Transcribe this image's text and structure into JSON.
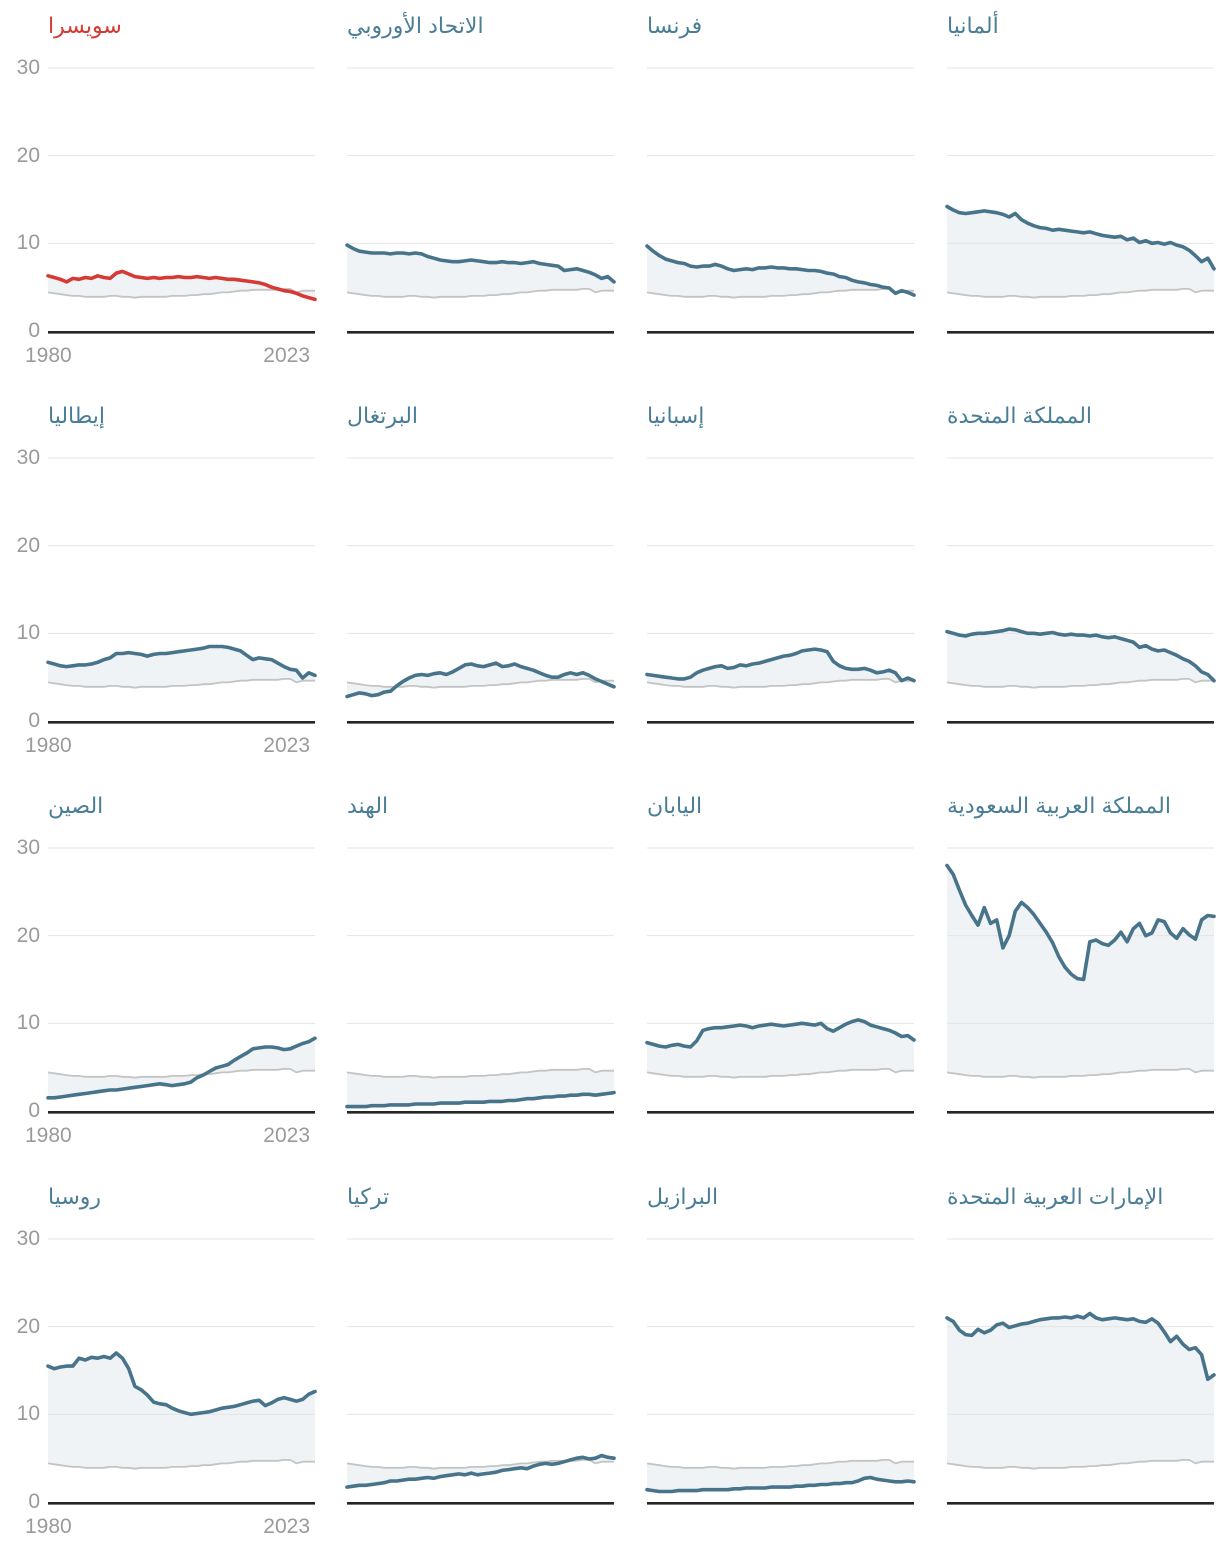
{
  "chart_data": {
    "type": "line",
    "title": "",
    "x_range": [
      1980,
      2023
    ],
    "ylim": [
      0,
      30
    ],
    "grid": true,
    "legend_position": "none",
    "y_tick_labels": [
      "30",
      "20",
      "10",
      "0"
    ],
    "y_tick_values": [
      30,
      20,
      10,
      0
    ],
    "x_tick_labels": [
      "1980",
      "2023"
    ],
    "colors": {
      "line": "#47748b",
      "highlight_line": "#d63a35",
      "title": "#4a7d96",
      "highlight_title": "#d63a35",
      "reference_line": "#c4c4c4",
      "area_fill": "#eff3f5",
      "gridline": "#e4e4e4",
      "baseline": "#262626",
      "tick_label": "#9a9a9a"
    },
    "reference_series_values": [
      4.4,
      4.3,
      4.2,
      4.1,
      4.0,
      4.0,
      3.9,
      3.9,
      3.9,
      3.9,
      4.0,
      4.0,
      3.9,
      3.9,
      3.8,
      3.9,
      3.9,
      3.9,
      3.9,
      3.9,
      4.0,
      4.0,
      4.0,
      4.1,
      4.1,
      4.2,
      4.2,
      4.3,
      4.4,
      4.4,
      4.5,
      4.6,
      4.6,
      4.7,
      4.7,
      4.7,
      4.7,
      4.7,
      4.8,
      4.8,
      4.4,
      4.6,
      4.6,
      4.6
    ],
    "panels": [
      {
        "id": "switzerland",
        "title": "سويسرا",
        "highlight": true,
        "values": [
          6.3,
          6.1,
          5.9,
          5.6,
          6.0,
          5.9,
          6.1,
          6.0,
          6.3,
          6.1,
          6.0,
          6.6,
          6.8,
          6.5,
          6.2,
          6.1,
          6.0,
          6.1,
          6.0,
          6.1,
          6.1,
          6.2,
          6.1,
          6.1,
          6.2,
          6.1,
          6.0,
          6.1,
          6.0,
          5.9,
          5.9,
          5.8,
          5.7,
          5.6,
          5.5,
          5.3,
          5.0,
          4.8,
          4.6,
          4.5,
          4.3,
          4.0,
          3.8,
          3.6
        ]
      },
      {
        "id": "european-union",
        "title": "الاتحاد الأوروبي",
        "highlight": false,
        "values": [
          9.8,
          9.4,
          9.1,
          9.0,
          8.9,
          8.9,
          8.9,
          8.8,
          8.9,
          8.9,
          8.8,
          8.9,
          8.8,
          8.5,
          8.3,
          8.1,
          8.0,
          7.9,
          7.9,
          8.0,
          8.1,
          8.0,
          7.9,
          7.8,
          7.8,
          7.9,
          7.8,
          7.8,
          7.7,
          7.8,
          7.9,
          7.7,
          7.6,
          7.5,
          7.4,
          6.9,
          7.0,
          7.1,
          6.9,
          6.7,
          6.4,
          6.0,
          6.2,
          5.6
        ]
      },
      {
        "id": "france",
        "title": "فرنسا",
        "highlight": false,
        "values": [
          9.7,
          9.1,
          8.6,
          8.2,
          8.0,
          7.8,
          7.7,
          7.4,
          7.3,
          7.4,
          7.4,
          7.6,
          7.4,
          7.1,
          6.9,
          7.0,
          7.1,
          7.0,
          7.2,
          7.2,
          7.3,
          7.2,
          7.2,
          7.1,
          7.1,
          7.0,
          6.9,
          6.9,
          6.8,
          6.6,
          6.5,
          6.2,
          6.1,
          5.8,
          5.6,
          5.5,
          5.3,
          5.2,
          5.0,
          4.9,
          4.3,
          4.6,
          4.4,
          4.1
        ]
      },
      {
        "id": "germany",
        "title": "ألمانيا",
        "highlight": false,
        "values": [
          14.2,
          13.8,
          13.5,
          13.4,
          13.5,
          13.6,
          13.7,
          13.6,
          13.5,
          13.3,
          13.0,
          13.4,
          12.7,
          12.3,
          12.0,
          11.8,
          11.7,
          11.5,
          11.6,
          11.5,
          11.4,
          11.3,
          11.2,
          11.3,
          11.1,
          10.9,
          10.8,
          10.7,
          10.8,
          10.4,
          10.6,
          10.1,
          10.3,
          10.0,
          10.1,
          9.9,
          10.1,
          9.8,
          9.6,
          9.2,
          8.6,
          7.9,
          8.3,
          7.1
        ]
      },
      {
        "id": "italy",
        "title": "إيطاليا",
        "highlight": false,
        "values": [
          6.7,
          6.5,
          6.3,
          6.2,
          6.3,
          6.4,
          6.4,
          6.5,
          6.7,
          7.0,
          7.2,
          7.7,
          7.7,
          7.8,
          7.7,
          7.6,
          7.4,
          7.6,
          7.7,
          7.7,
          7.8,
          7.9,
          8.0,
          8.1,
          8.2,
          8.3,
          8.5,
          8.5,
          8.5,
          8.4,
          8.2,
          8.0,
          7.5,
          7.0,
          7.2,
          7.1,
          7.0,
          6.6,
          6.2,
          5.9,
          5.8,
          4.9,
          5.5,
          5.2
        ]
      },
      {
        "id": "portugal",
        "title": "البرتغال",
        "highlight": false,
        "values": [
          2.8,
          3.0,
          3.2,
          3.1,
          2.9,
          3.0,
          3.3,
          3.4,
          4.0,
          4.5,
          4.9,
          5.2,
          5.3,
          5.2,
          5.4,
          5.5,
          5.3,
          5.6,
          6.0,
          6.4,
          6.5,
          6.3,
          6.2,
          6.4,
          6.6,
          6.2,
          6.3,
          6.5,
          6.2,
          6.0,
          5.8,
          5.5,
          5.2,
          5.0,
          5.0,
          5.3,
          5.5,
          5.3,
          5.5,
          5.2,
          4.8,
          4.5,
          4.2,
          3.9
        ]
      },
      {
        "id": "spain",
        "title": "إسبانيا",
        "highlight": false,
        "values": [
          5.3,
          5.2,
          5.1,
          5.0,
          4.9,
          4.8,
          4.8,
          5.0,
          5.5,
          5.8,
          6.0,
          6.2,
          6.3,
          6.0,
          6.1,
          6.4,
          6.3,
          6.5,
          6.6,
          6.8,
          7.0,
          7.2,
          7.4,
          7.5,
          7.7,
          8.0,
          8.1,
          8.2,
          8.1,
          7.9,
          6.8,
          6.3,
          6.0,
          5.9,
          5.9,
          6.0,
          5.8,
          5.5,
          5.6,
          5.8,
          5.5,
          4.6,
          4.9,
          4.6
        ]
      },
      {
        "id": "united-kingdom",
        "title": "المملكة المتحدة",
        "highlight": false,
        "values": [
          10.2,
          10.0,
          9.8,
          9.7,
          9.9,
          10.0,
          10.0,
          10.1,
          10.2,
          10.3,
          10.5,
          10.4,
          10.2,
          10.0,
          10.0,
          9.9,
          10.0,
          10.1,
          9.9,
          9.8,
          9.9,
          9.8,
          9.8,
          9.7,
          9.8,
          9.6,
          9.5,
          9.6,
          9.4,
          9.2,
          9.0,
          8.4,
          8.6,
          8.2,
          8.0,
          8.1,
          7.8,
          7.5,
          7.1,
          6.8,
          6.3,
          5.6,
          5.3,
          4.6
        ]
      },
      {
        "id": "china",
        "title": "الصين",
        "highlight": false,
        "values": [
          1.5,
          1.5,
          1.6,
          1.7,
          1.8,
          1.9,
          2.0,
          2.1,
          2.2,
          2.3,
          2.4,
          2.4,
          2.5,
          2.6,
          2.7,
          2.8,
          2.9,
          3.0,
          3.1,
          3.0,
          2.9,
          3.0,
          3.1,
          3.3,
          3.8,
          4.1,
          4.5,
          4.9,
          5.1,
          5.3,
          5.8,
          6.2,
          6.6,
          7.1,
          7.2,
          7.3,
          7.3,
          7.2,
          7.0,
          7.1,
          7.4,
          7.7,
          7.9,
          8.3
        ]
      },
      {
        "id": "india",
        "title": "الهند",
        "highlight": false,
        "values": [
          0.5,
          0.5,
          0.5,
          0.5,
          0.6,
          0.6,
          0.6,
          0.7,
          0.7,
          0.7,
          0.7,
          0.8,
          0.8,
          0.8,
          0.8,
          0.9,
          0.9,
          0.9,
          0.9,
          1.0,
          1.0,
          1.0,
          1.0,
          1.1,
          1.1,
          1.1,
          1.2,
          1.2,
          1.3,
          1.4,
          1.4,
          1.5,
          1.6,
          1.6,
          1.7,
          1.7,
          1.8,
          1.8,
          1.9,
          1.9,
          1.8,
          1.9,
          2.0,
          2.1
        ]
      },
      {
        "id": "japan",
        "title": "اليابان",
        "highlight": false,
        "values": [
          7.8,
          7.6,
          7.4,
          7.3,
          7.5,
          7.6,
          7.4,
          7.3,
          8.0,
          9.2,
          9.4,
          9.5,
          9.5,
          9.6,
          9.7,
          9.8,
          9.7,
          9.5,
          9.7,
          9.8,
          9.9,
          9.8,
          9.7,
          9.8,
          9.9,
          10.0,
          9.9,
          9.8,
          10.0,
          9.4,
          9.1,
          9.5,
          9.9,
          10.2,
          10.4,
          10.2,
          9.8,
          9.6,
          9.4,
          9.2,
          8.9,
          8.5,
          8.6,
          8.1
        ]
      },
      {
        "id": "saudi-arabia",
        "title": "المملكة العربية السعودية",
        "highlight": false,
        "values": [
          28.0,
          27.0,
          25.2,
          23.5,
          22.3,
          21.2,
          23.2,
          21.4,
          21.8,
          18.6,
          20.0,
          22.8,
          23.8,
          23.2,
          22.4,
          21.4,
          20.4,
          19.2,
          17.6,
          16.4,
          15.6,
          15.1,
          15.0,
          19.3,
          19.5,
          19.1,
          18.9,
          19.5,
          20.4,
          19.3,
          20.8,
          21.4,
          20.0,
          20.3,
          21.8,
          21.6,
          20.3,
          19.7,
          20.8,
          20.1,
          19.6,
          21.8,
          22.3,
          22.2
        ]
      },
      {
        "id": "russia",
        "title": "روسيا",
        "highlight": false,
        "values": [
          15.5,
          15.2,
          15.4,
          15.5,
          15.5,
          16.4,
          16.2,
          16.5,
          16.4,
          16.6,
          16.4,
          17.0,
          16.4,
          15.2,
          13.2,
          12.8,
          12.2,
          11.4,
          11.2,
          11.1,
          10.7,
          10.4,
          10.2,
          10.0,
          10.1,
          10.2,
          10.3,
          10.5,
          10.7,
          10.8,
          10.9,
          11.1,
          11.3,
          11.5,
          11.6,
          11.0,
          11.3,
          11.7,
          11.9,
          11.7,
          11.5,
          11.7,
          12.3,
          12.6
        ]
      },
      {
        "id": "turkey",
        "title": "تركيا",
        "highlight": false,
        "values": [
          1.7,
          1.8,
          1.9,
          1.9,
          2.0,
          2.1,
          2.2,
          2.4,
          2.4,
          2.5,
          2.6,
          2.6,
          2.7,
          2.8,
          2.7,
          2.9,
          3.0,
          3.1,
          3.2,
          3.1,
          3.3,
          3.1,
          3.2,
          3.3,
          3.4,
          3.6,
          3.7,
          3.8,
          3.9,
          3.8,
          4.1,
          4.3,
          4.4,
          4.3,
          4.4,
          4.6,
          4.8,
          5.0,
          5.1,
          4.9,
          5.0,
          5.3,
          5.1,
          5.0
        ]
      },
      {
        "id": "brazil",
        "title": "البرازيل",
        "highlight": false,
        "values": [
          1.4,
          1.3,
          1.2,
          1.2,
          1.2,
          1.3,
          1.3,
          1.3,
          1.3,
          1.4,
          1.4,
          1.4,
          1.4,
          1.4,
          1.5,
          1.5,
          1.6,
          1.6,
          1.6,
          1.6,
          1.7,
          1.7,
          1.7,
          1.7,
          1.8,
          1.8,
          1.9,
          1.9,
          2.0,
          2.0,
          2.1,
          2.1,
          2.2,
          2.2,
          2.4,
          2.7,
          2.8,
          2.6,
          2.5,
          2.4,
          2.3,
          2.3,
          2.4,
          2.3
        ]
      },
      {
        "id": "united-arab-emirates",
        "title": "الإمارات العربية المتحدة",
        "highlight": false,
        "values": [
          21.0,
          20.6,
          19.6,
          19.1,
          19.0,
          19.7,
          19.3,
          19.6,
          20.2,
          20.4,
          19.9,
          20.1,
          20.3,
          20.4,
          20.6,
          20.8,
          20.9,
          21.0,
          21.0,
          21.1,
          21.0,
          21.2,
          21.0,
          21.5,
          21.0,
          20.8,
          20.9,
          21.0,
          20.9,
          20.8,
          20.9,
          20.6,
          20.5,
          20.9,
          20.4,
          19.4,
          18.3,
          18.9,
          18.0,
          17.4,
          17.6,
          16.8,
          14.0,
          14.5
        ]
      }
    ]
  }
}
